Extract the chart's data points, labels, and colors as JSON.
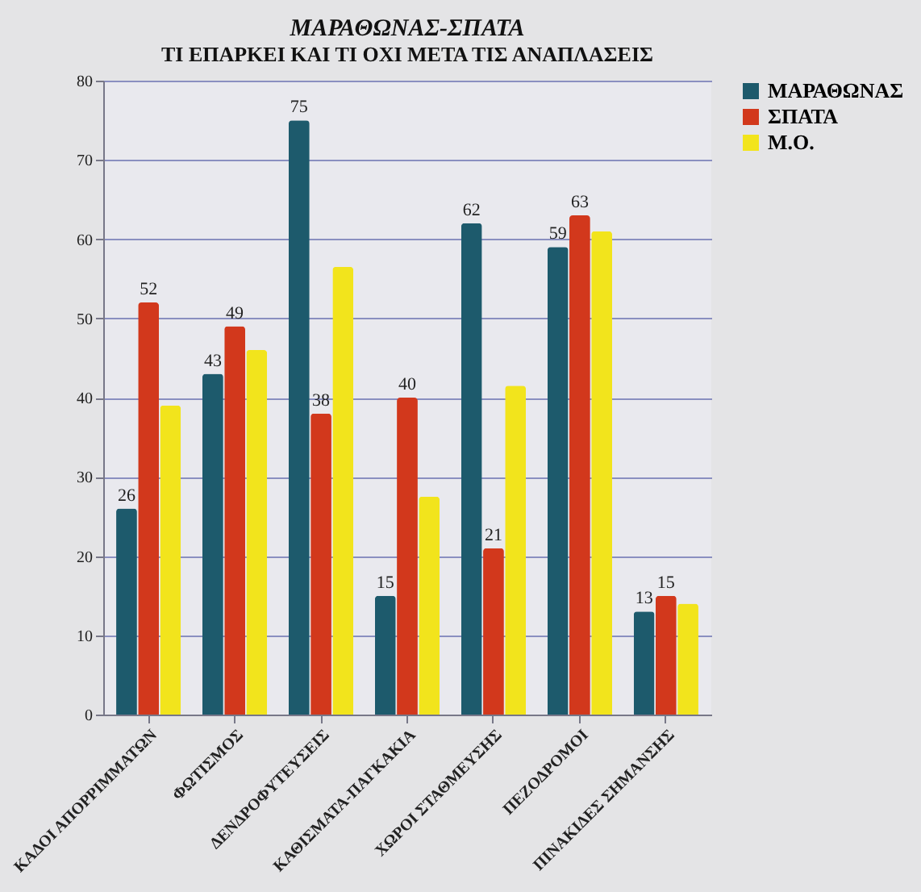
{
  "chart_data": {
    "type": "bar",
    "title": "ΜΑΡΑΘΩΝΑΣ-ΣΠΑΤΑ",
    "subtitle": "ΤΙ ΕΠΑΡΚΕΙ ΚΑΙ ΤΙ ΟΧΙ ΜΕΤΑ ΤΙΣ ΑΝΑΠΛΑΣΕΙΣ",
    "categories": [
      "ΚΑΔΟΙ ΑΠΟΡΡΙΜΜΑΤΩΝ",
      "ΦΩΤΙΣΜΟΣ",
      "ΔΕΝΔΡΟΦΥΤΕΥΣΕΙΣ",
      "ΚΑΘΙΣΜΑΤΑ-ΠΑΓΚΑΚΙΑ",
      "ΧΩΡΟΙ ΣΤΑΘΜΕΥΣΗΣ",
      "ΠΕΖΟΔΡΟΜΟΙ",
      "ΠΙΝΑΚΙΔΕΣ ΣΗΜΑΝΣΗΣ"
    ],
    "series": [
      {
        "name": "ΜΑΡΑΘΩΝΑΣ",
        "color": "#1d5a6c",
        "values": [
          26,
          43,
          75,
          15,
          62,
          59,
          13
        ],
        "value_labels": [
          "26",
          "43",
          "75",
          "15",
          "62",
          "59",
          "13"
        ]
      },
      {
        "name": "ΣΠΑΤΑ",
        "color": "#d2381c",
        "values": [
          52,
          49,
          38,
          40,
          21,
          63,
          15
        ],
        "value_labels": [
          "52",
          "49",
          "38",
          "40",
          "21",
          "63",
          "15"
        ]
      },
      {
        "name": "Μ.Ο.",
        "color": "#f2e41c",
        "values": [
          39,
          46,
          56.5,
          27.5,
          41.5,
          61,
          14
        ]
      }
    ],
    "ylim": [
      0,
      80
    ],
    "yticks": [
      0,
      10,
      20,
      30,
      40,
      50,
      60,
      70,
      80
    ],
    "grid": "y",
    "legend": "right"
  }
}
